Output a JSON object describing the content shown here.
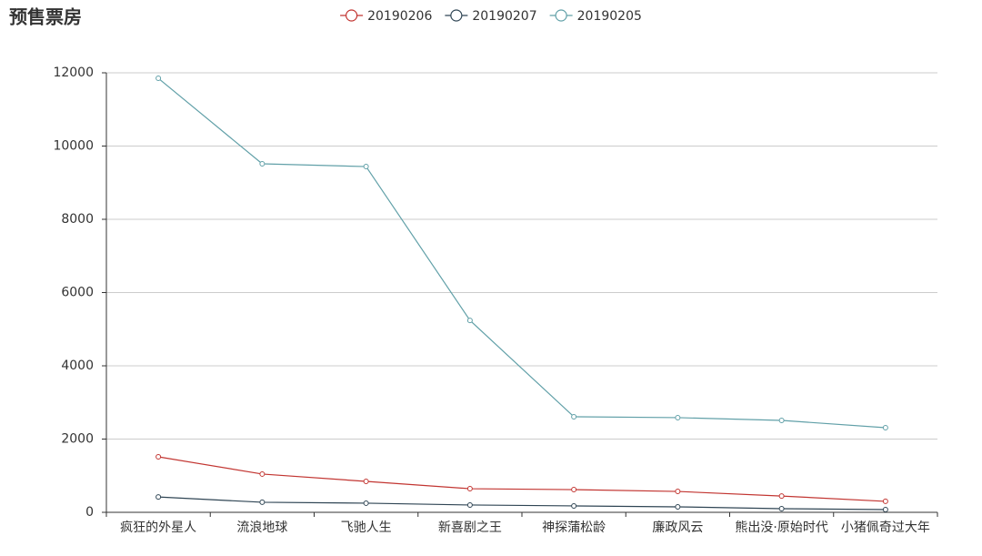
{
  "chart_data": {
    "type": "line",
    "title": "预售票房",
    "categories": [
      "疯狂的外星人",
      "流浪地球",
      "飞驰人生",
      "新喜剧之王",
      "神探蒲松龄",
      "廉政风云",
      "熊出没·原始时代",
      "小猪佩奇过大年"
    ],
    "series": [
      {
        "name": "20190206",
        "color": "#c23531",
        "values": [
          1515,
          1045,
          845,
          645,
          620,
          570,
          445,
          300
        ]
      },
      {
        "name": "20190207",
        "color": "#2f4554",
        "values": [
          420,
          275,
          250,
          200,
          175,
          150,
          100,
          75
        ]
      },
      {
        "name": "20190205",
        "color": "#61a0a8",
        "values": [
          11850,
          9515,
          9440,
          5240,
          2610,
          2585,
          2510,
          2310
        ]
      }
    ],
    "ylim": [
      0,
      12000
    ],
    "yticks": [
      0,
      2000,
      4000,
      6000,
      8000,
      10000,
      12000
    ],
    "grid": true,
    "legend": "top"
  }
}
